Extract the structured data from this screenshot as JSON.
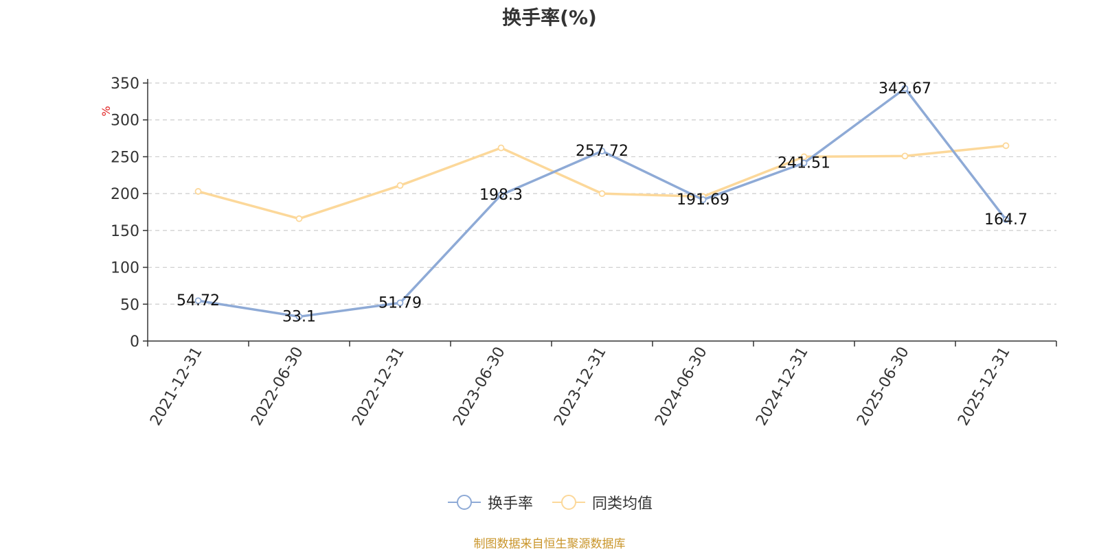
{
  "chart_data": {
    "type": "line",
    "title": "换手率(%)",
    "ylabel": "%",
    "xlabel": "",
    "categories": [
      "2021-12-31",
      "2022-06-30",
      "2022-12-31",
      "2023-06-30",
      "2023-12-31",
      "2024-06-30",
      "2024-12-31",
      "2025-06-30",
      "2025-12-31"
    ],
    "ylim": [
      0,
      350
    ],
    "yticks": [
      0,
      50,
      100,
      150,
      200,
      250,
      300,
      350
    ],
    "grid": true,
    "legend_position": "bottom",
    "series": [
      {
        "name": "换手率",
        "color": "#8eaad6",
        "values": [
          54.72,
          33.1,
          51.79,
          198.3,
          257.72,
          191.69,
          241.51,
          342.67,
          164.7
        ],
        "labels": [
          "54.72",
          "33.1",
          "51.79",
          "198.3",
          "257.72",
          "191.69",
          "241.51",
          "342.67",
          "164.7"
        ]
      },
      {
        "name": "同类均值",
        "color": "#fcd89a",
        "values": [
          203,
          166,
          211,
          262,
          200,
          196,
          250,
          251,
          265
        ]
      }
    ],
    "source": "制图数据来自恒生聚源数据库"
  }
}
